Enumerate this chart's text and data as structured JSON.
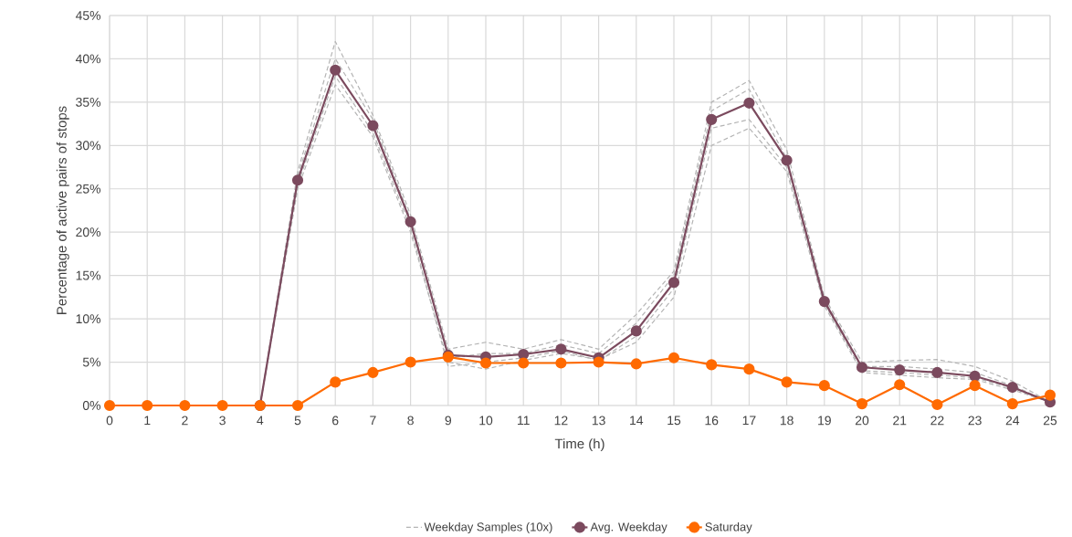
{
  "chart_data": {
    "type": "line",
    "xlabel": "Time (h)",
    "ylabel": "Percentage of active pairs of stops",
    "x": [
      0,
      1,
      2,
      3,
      4,
      5,
      6,
      7,
      8,
      9,
      10,
      11,
      12,
      13,
      14,
      15,
      16,
      17,
      18,
      19,
      20,
      21,
      22,
      23,
      24,
      25
    ],
    "xlim": [
      0,
      25
    ],
    "xticks": [
      0,
      1,
      2,
      3,
      4,
      5,
      6,
      7,
      8,
      9,
      10,
      11,
      12,
      13,
      14,
      15,
      16,
      17,
      18,
      19,
      20,
      21,
      22,
      23,
      24,
      25
    ],
    "ylim": [
      0,
      45
    ],
    "yticks": [
      {
        "value": 0,
        "label": "0%"
      },
      {
        "value": 5,
        "label": "5%"
      },
      {
        "value": 10,
        "label": "10%"
      },
      {
        "value": 15,
        "label": "15%"
      },
      {
        "value": 20,
        "label": "20%"
      },
      {
        "value": 25,
        "label": "25%"
      },
      {
        "value": 30,
        "label": "30%"
      },
      {
        "value": 35,
        "label": "35%"
      },
      {
        "value": 40,
        "label": "40%"
      },
      {
        "value": 45,
        "label": "45%"
      }
    ],
    "grid": true,
    "legend": "bottom",
    "series": [
      {
        "name": "Weekday Samples (10x)",
        "color": "#b4b4b4",
        "line_style": "dashed",
        "marker": "none",
        "values": [
          null,
          null,
          null,
          null,
          0,
          27,
          42,
          33.5,
          22,
          6.5,
          7.3,
          6.5,
          7.6,
          6.5,
          10.5,
          15.5,
          35,
          37.5,
          29.5,
          12.5,
          5,
          5.2,
          5.3,
          4.5,
          2.8,
          0.4
        ]
      },
      {
        "color": "#b4b4b4",
        "line_style": "dashed",
        "marker": "none",
        "values": [
          null,
          null,
          null,
          null,
          0,
          25,
          37,
          31,
          20,
          5,
          4.2,
          5.2,
          6,
          5.3,
          7.3,
          12.5,
          30,
          32,
          27,
          11.5,
          3.8,
          3.5,
          3.2,
          3,
          1.8,
          0.4
        ]
      },
      {
        "color": "#b4b4b4",
        "line_style": "dashed",
        "marker": "none",
        "values": [
          null,
          null,
          null,
          null,
          0,
          26.5,
          40,
          33,
          21.5,
          5.5,
          6,
          6,
          7,
          6,
          9.5,
          15,
          34,
          36.5,
          28.5,
          12.2,
          4.5,
          4.5,
          4.2,
          3.8,
          2.3,
          0.4
        ]
      },
      {
        "color": "#b4b4b4",
        "line_style": "dashed",
        "marker": "none",
        "values": [
          null,
          null,
          null,
          null,
          0,
          25.5,
          38,
          31.5,
          20.5,
          4.5,
          5,
          5.5,
          6.3,
          5.2,
          8,
          13.5,
          32,
          33,
          27.5,
          11.8,
          4,
          3.8,
          3.5,
          3.2,
          2,
          0.4
        ]
      },
      {
        "name": "Avg. Weekday",
        "color": "#7b4a5e",
        "line_style": "solid",
        "marker": "circle",
        "values": [
          null,
          null,
          null,
          null,
          0,
          26,
          38.7,
          32.3,
          21.2,
          5.8,
          5.6,
          5.9,
          6.5,
          5.5,
          8.6,
          14.2,
          33,
          34.9,
          28.3,
          12,
          4.4,
          4.1,
          3.8,
          3.4,
          2.1,
          0.4
        ]
      },
      {
        "name": "Saturday",
        "color": "#ff6a00",
        "line_style": "solid",
        "marker": "circle",
        "values": [
          0,
          0,
          0,
          0,
          0,
          0,
          2.7,
          3.8,
          5.0,
          5.6,
          4.9,
          4.9,
          4.9,
          5.0,
          4.8,
          5.5,
          4.7,
          4.2,
          2.7,
          2.3,
          0.2,
          2.4,
          0.1,
          2.3,
          0.2,
          1.2
        ]
      }
    ]
  }
}
